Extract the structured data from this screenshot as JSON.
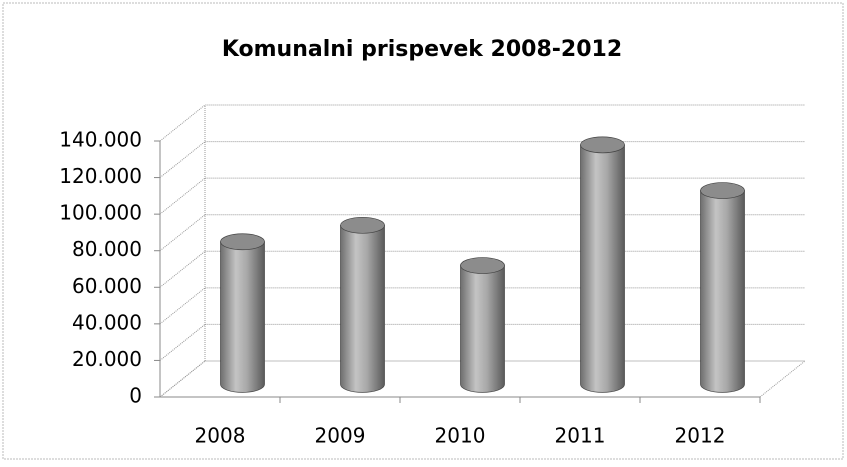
{
  "chart_data": {
    "type": "bar3d",
    "title": "Komunalni prispevek 2008-2012",
    "categories": [
      "2008",
      "2009",
      "2010",
      "2011",
      "2012"
    ],
    "values": [
      78000,
      87000,
      65000,
      131000,
      106000
    ],
    "color": "#9a9a9a",
    "ylim": [
      0,
      140000
    ],
    "yticks": [
      0,
      {
        "value": 20000,
        "label": "20.000"
      },
      {
        "value": 40000,
        "label": "40.000"
      },
      {
        "value": 60000,
        "label": "60.000"
      },
      {
        "value": 80000,
        "label": "80.000"
      },
      {
        "value": 100000,
        "label": "100.000"
      },
      {
        "value": 120000,
        "label": "120.000"
      },
      {
        "value": 140000,
        "label": "140.000"
      }
    ],
    "grid": true
  }
}
